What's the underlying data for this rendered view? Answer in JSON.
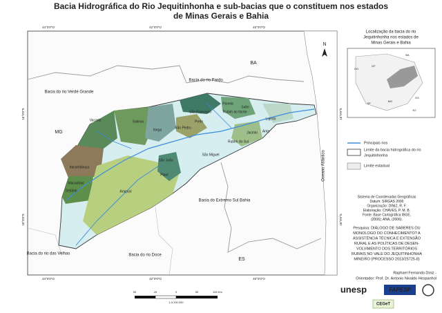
{
  "title": [
    "Bacia Hidrográfica do Rio Jequitinhonha e sub-bacias que o constituem nos estados",
    "de Minas Gerais e Bahia"
  ],
  "map": {
    "graticule": {
      "top": [
        "44°0'0\"O",
        "42°0'0\"O",
        "40°0'0\"O"
      ],
      "bottom": [
        "44°0'0\"O",
        "42°0'0\"O",
        "40°0'0\"O"
      ],
      "left": [
        "16°0'0\"S",
        "18°0'0\"S"
      ],
      "right": [
        "16°0'0\"S",
        "18°0'0\"S"
      ]
    },
    "regions": [
      "BA",
      "MG",
      "ES",
      "Bacia do rio Pardo",
      "Bacia do rio Verde Grande",
      "Bacia do Extremo Sul Bahia",
      "Bacia do rio das Velhas",
      "Bacia do rio Doce",
      "Oceano Atlântico"
    ],
    "subbasins": [
      "Vacaria",
      "Salinas",
      "Itinga",
      "Piauí",
      "São Pedro",
      "Preto",
      "São Francisco",
      "Panela",
      "Rubim do Norte",
      "Salto",
      "Jacinto",
      "Anta",
      "Rubim do Sul",
      "São João",
      "São Miguel",
      "Lajedo",
      "Itacambiruçu",
      "Macaúbas",
      "Setúbal",
      "Araçuaí"
    ],
    "north": "N"
  },
  "inset": {
    "title": [
      "Localização da bacia do rio",
      "Jequitinhonha nos estados de",
      "Minas Gerais e Bahia"
    ],
    "labels": [
      "BA",
      "GO",
      "DF",
      "MG",
      "ES",
      "SP",
      "RJ"
    ]
  },
  "legend": [
    [
      "Principais rios"
    ],
    [
      "Limite da bacia hidrográfica do rio",
      "Jequitinhonha"
    ],
    [
      "Limite estadual"
    ]
  ],
  "credits": [
    "Sistema de Coordenadas Geográficas",
    "Datum: SIRGAS 2000",
    "Organização: DINIZ, R. F.",
    "Elaboração: CHAVES, P. M. B.",
    "Fonte: Base Cartográfica IBGE,",
    "(2006); ANA, (2006)."
  ],
  "research": [
    "Pesquisa: DIÁLOGO DE SABERES OU",
    "MONOLOGO DO CONHECIMENTO? A",
    "ASSISTÊNCIA TÉCNICA E EXTENSÃO",
    "RURAL E AS POLÍTICAS DE DESEN-",
    "VOLVIMENTO DOS TERRITÓRIOS",
    "RURAIS NO VALE DO JEQUITINHONHA",
    "MINEIRO (PROCESSO 2013/25725-8)"
  ],
  "authors": [
    "Raphael Fernando Diniz -",
    "Orientador: Prof. Dr. Antonio Nivaldo Hespanhol"
  ],
  "scale": {
    "ticks": [
      "50",
      "25",
      "0",
      "50",
      "100 Km"
    ],
    "ratio": "1:3.200.000"
  },
  "logos": [
    "unesp",
    "FAPESP",
    "CEGeT"
  ]
}
